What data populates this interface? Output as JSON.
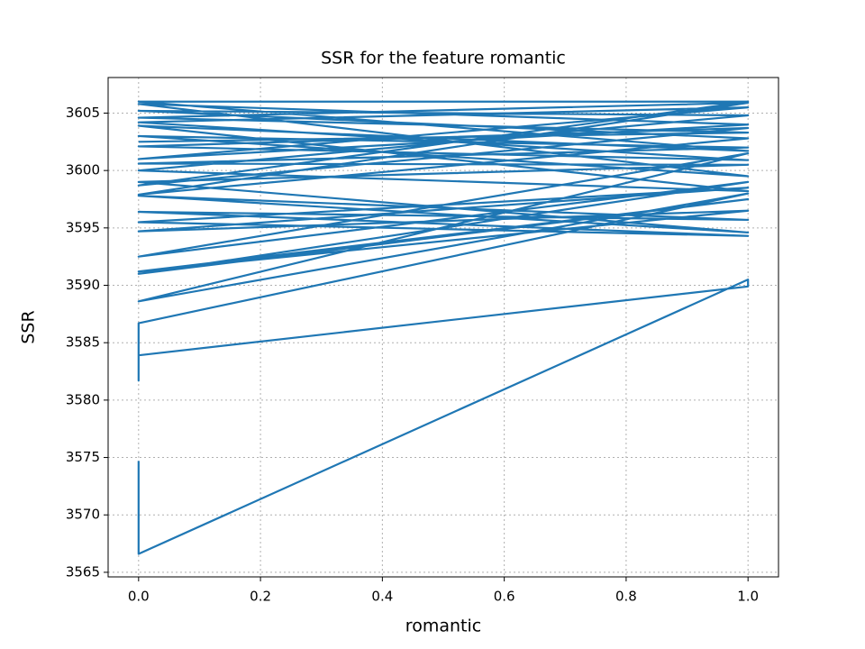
{
  "chart_data": {
    "type": "line",
    "title": "SSR for the feature romantic",
    "xlabel": "romantic",
    "ylabel": "SSR",
    "x": [
      0,
      0,
      1,
      1,
      0,
      0,
      0,
      1,
      0,
      1,
      0,
      1,
      0,
      1,
      0,
      1,
      0,
      1,
      0,
      1,
      0,
      1,
      0,
      1,
      0,
      1,
      0,
      1,
      0,
      1,
      0,
      1,
      0,
      1,
      0,
      1,
      0,
      1,
      0,
      1,
      0,
      1,
      0,
      1,
      0,
      1,
      0,
      1,
      0,
      1,
      0,
      1,
      0
    ],
    "series": [
      {
        "name": "SSR",
        "color": "#1f77b4",
        "values": [
          3574.7,
          3566.6,
          3590.5,
          3589.9,
          3583.9,
          3581.7,
          3586.7,
          3598.0,
          3588.6,
          3601.5,
          3592.5,
          3599.0,
          3591.0,
          3597.5,
          3591.2,
          3596.5,
          3594.7,
          3598.5,
          3595.5,
          3594.3,
          3596.4,
          3595.7,
          3597.8,
          3594.6,
          3599.0,
          3600.5,
          3600.6,
          3602.0,
          3603.0,
          3599.5,
          3605.8,
          3604.0,
          3601.0,
          3605.5,
          3604.2,
          3600.9,
          3602.1,
          3603.7,
          3598.7,
          3606.0,
          3606.0,
          3601.7,
          3603.9,
          3598.2,
          3600.0,
          3604.8,
          3605.2,
          3602.8,
          3597.9,
          3605.9,
          3604.6,
          3603.3,
          3602.5
        ]
      }
    ],
    "xlim": [
      -0.05,
      1.05
    ],
    "xticks": [
      {
        "value": 0,
        "label": "0.0"
      },
      {
        "value": 0.2,
        "label": "0.2"
      },
      {
        "value": 0.4,
        "label": "0.4"
      },
      {
        "value": 0.6,
        "label": "0.6"
      },
      {
        "value": 0.8,
        "label": "0.8"
      },
      {
        "value": 1,
        "label": "1.0"
      }
    ],
    "ylim": [
      3564.6,
      3608.1
    ],
    "yticks": [
      3565,
      3570,
      3575,
      3580,
      3585,
      3590,
      3595,
      3600,
      3605
    ],
    "grid": true
  }
}
